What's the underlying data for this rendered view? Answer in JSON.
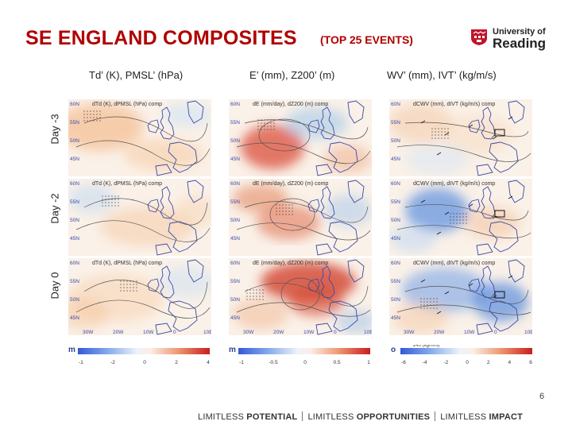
{
  "slide": {
    "title": "SE ENGLAND COMPOSITES",
    "subtitle": "(TOP 25 EVENTS)",
    "page_number": "6"
  },
  "logo": {
    "line1": "University of",
    "line2": "Reading"
  },
  "columns": [
    {
      "header": "Td’ (K), PMSL’ (hPa)",
      "panel_title": "dTd (K), dPMSL (hPa) comp"
    },
    {
      "header": "E’ (mm), Z200’ (m)",
      "panel_title": "dE (mm/day), dZ200 (m) comp"
    },
    {
      "header": "WV’ (mm), IVT’ (kg/m/s)",
      "panel_title": "dCWV (mm), dIVT (kg/m/s) comp"
    }
  ],
  "rows": [
    {
      "label": "Day -3"
    },
    {
      "label": "Day -2"
    },
    {
      "label": "Day 0"
    }
  ],
  "map": {
    "lat_labels": [
      "60N",
      "55N",
      "50N",
      "45N"
    ],
    "lon_labels": [
      "30W",
      "20W",
      "10W",
      "0",
      "10E"
    ]
  },
  "colorbars": [
    {
      "unit": "m",
      "ticks": [
        "-1",
        "-2",
        "0",
        "2",
        "4"
      ]
    },
    {
      "unit": "m",
      "ticks": [
        "-1",
        "-0.5",
        "0",
        "0.5",
        "1"
      ]
    },
    {
      "unit": "o",
      "ticks": [
        "-6",
        "-4",
        "-2",
        "0",
        "2",
        "4",
        "6"
      ],
      "vector_label": "245 (kg/m/s)"
    }
  ],
  "colors": {
    "title_red": "#b00000",
    "cbar_blue": "#2f5bd8",
    "cbar_red": "#c81e1e",
    "land_outline": "#3a4aa8"
  },
  "footer": {
    "part1_plain": "LIMITLESS ",
    "part1_bold": "POTENTIAL",
    "part2_plain": "LIMITLESS ",
    "part2_bold": "OPPORTUNITIES",
    "part3_plain": "LIMITLESS ",
    "part3_bold": "IMPACT"
  }
}
